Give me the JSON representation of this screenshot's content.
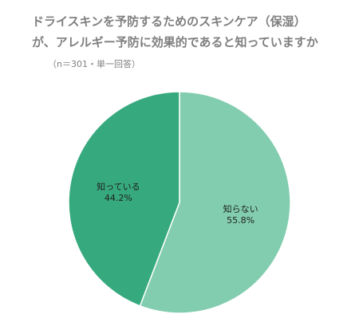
{
  "title_lines": [
    "ドライスキンを予防するためのスキンケア（保湿）",
    "が、アレルギー予防に効果的であると知っていますか"
  ],
  "sample_note": "（n＝301・単一回答）",
  "colors": {
    "title_text": "#7f7f7f",
    "slice_known": "#36a97f",
    "slice_unknown": "#82cdaf",
    "separator": "#ffffff"
  },
  "chart_data": {
    "type": "pie",
    "slices": [
      {
        "label": "知っている",
        "value": 44.2,
        "value_label": "44.2%",
        "color": "#36a97f"
      },
      {
        "label": "知らない",
        "value": 55.8,
        "value_label": "55.8%",
        "color": "#82cdaf"
      }
    ],
    "start": "12 o'clock",
    "direction": "clockwise from 知らない"
  }
}
